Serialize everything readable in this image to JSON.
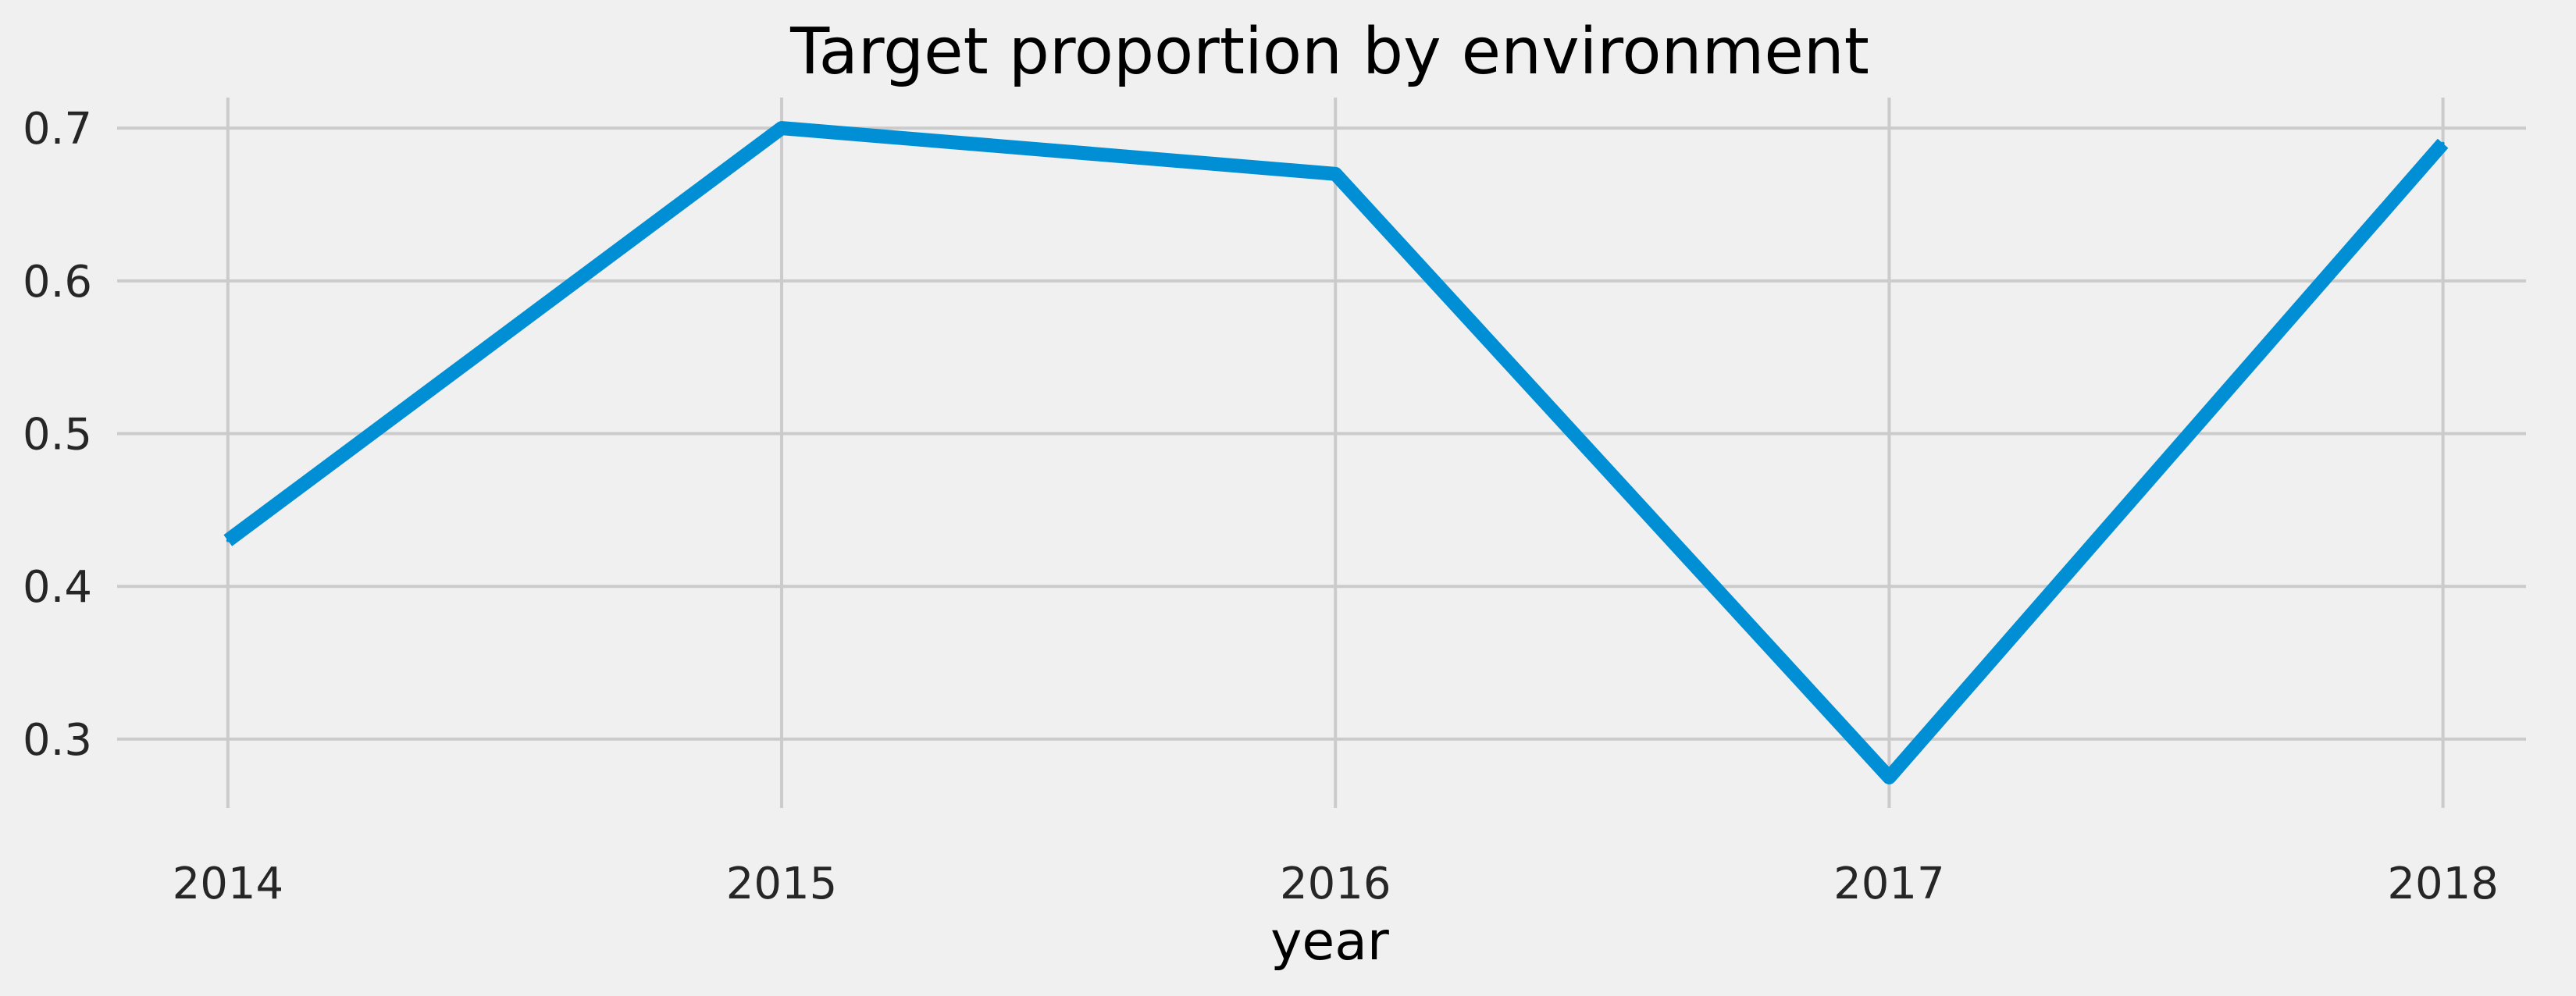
{
  "chart_data": {
    "type": "line",
    "title": "Target proportion by environment",
    "xlabel": "year",
    "ylabel": "",
    "x": [
      2014,
      2015,
      2016,
      2017,
      2018
    ],
    "x_tick_labels": [
      "2014",
      "2015",
      "2016",
      "2017",
      "2018"
    ],
    "y_ticks": [
      0.3,
      0.4,
      0.5,
      0.6,
      0.7
    ],
    "y_tick_labels": [
      "0.3",
      "0.4",
      "0.5",
      "0.6",
      "0.7"
    ],
    "xlim": [
      2013.8,
      2018.15
    ],
    "ylim": [
      0.255,
      0.72
    ],
    "grid": true,
    "legend": "none",
    "series": [
      {
        "values": [
          0.43,
          0.7,
          0.67,
          0.275,
          0.69
        ],
        "color": "#008fd5"
      }
    ],
    "colors": {
      "background": "#f0f0f0",
      "grid": "#cbcbcb",
      "line": "#008fd5"
    }
  }
}
